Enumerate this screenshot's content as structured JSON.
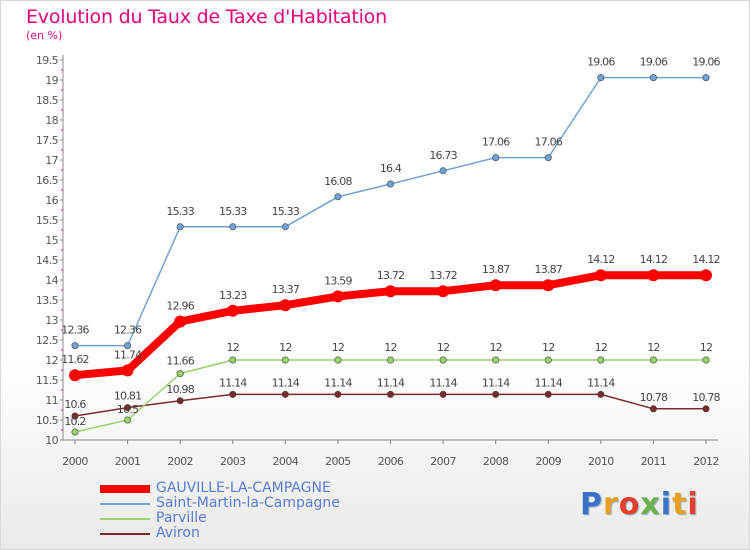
{
  "title": "Evolution du Taux de Taxe d'Habitation",
  "subtitle": "(en %)",
  "logo": {
    "text": "Proxiti",
    "colors": [
      "#3a73c6",
      "#e8a024",
      "#e63d2c",
      "#6ab04c",
      "#3a73c6",
      "#e8a024",
      "#e63d2c"
    ]
  },
  "chart_data": {
    "type": "line",
    "x": [
      "2000",
      "2001",
      "2002",
      "2003",
      "2004",
      "2005",
      "2006",
      "2007",
      "2008",
      "2009",
      "2010",
      "2011",
      "2012"
    ],
    "ylim": [
      10,
      19.5
    ],
    "yticks": [
      "10",
      "10.5",
      "11",
      "11.5",
      "12",
      "12.5",
      "13",
      "13.5",
      "14",
      "14.5",
      "15",
      "15.5",
      "16",
      "16.5",
      "17",
      "17.5",
      "18",
      "18.5",
      "19",
      "19.5"
    ],
    "grid": false,
    "legend_position": "bottom-left",
    "series": [
      {
        "name": "GAUVILLE-LA-CAMPAGNE",
        "color": "#ff0000",
        "values": [
          11.62,
          11.74,
          12.96,
          13.23,
          13.37,
          13.59,
          13.72,
          13.72,
          13.87,
          13.87,
          14.12,
          14.12,
          14.12
        ],
        "labels": [
          "11.62",
          "11.74",
          "12.96",
          "13.23",
          "13.37",
          "13.59",
          "13.72",
          "13.72",
          "13.87",
          "13.87",
          "14.12",
          "14.12",
          "14.12"
        ]
      },
      {
        "name": "Saint-Martin-la-Campagne",
        "color": "#6fa2d6",
        "values": [
          12.36,
          12.36,
          15.33,
          15.33,
          15.33,
          16.08,
          16.4,
          16.73,
          17.06,
          17.06,
          19.06,
          19.06,
          19.06
        ],
        "labels": [
          "12.36",
          "12.36",
          "15.33",
          "15.33",
          "15.33",
          "16.08",
          "16.4",
          "16.73",
          "17.06",
          "17.06",
          "19.06",
          "19.06",
          "19.06"
        ]
      },
      {
        "name": "Parville",
        "color": "#9ad36a",
        "values": [
          10.2,
          10.5,
          11.66,
          12,
          12,
          12,
          12,
          12,
          12,
          12,
          12,
          12,
          12
        ],
        "labels": [
          "10.2",
          "10.5",
          "11.66",
          "12",
          "12",
          "12",
          "12",
          "12",
          "12",
          "12",
          "12",
          "12",
          "12"
        ]
      },
      {
        "name": "Aviron",
        "color": "#7a2a2a",
        "values": [
          10.6,
          10.81,
          10.98,
          11.14,
          11.14,
          11.14,
          11.14,
          11.14,
          11.14,
          11.14,
          11.14,
          10.78,
          10.78
        ],
        "labels": [
          "10.6",
          "10.81",
          "10.98",
          "11.14",
          "11.14",
          "11.14",
          "11.14",
          "11.14",
          "11.14",
          "11.14",
          "11.14",
          "10.78",
          "10.78"
        ]
      }
    ]
  }
}
